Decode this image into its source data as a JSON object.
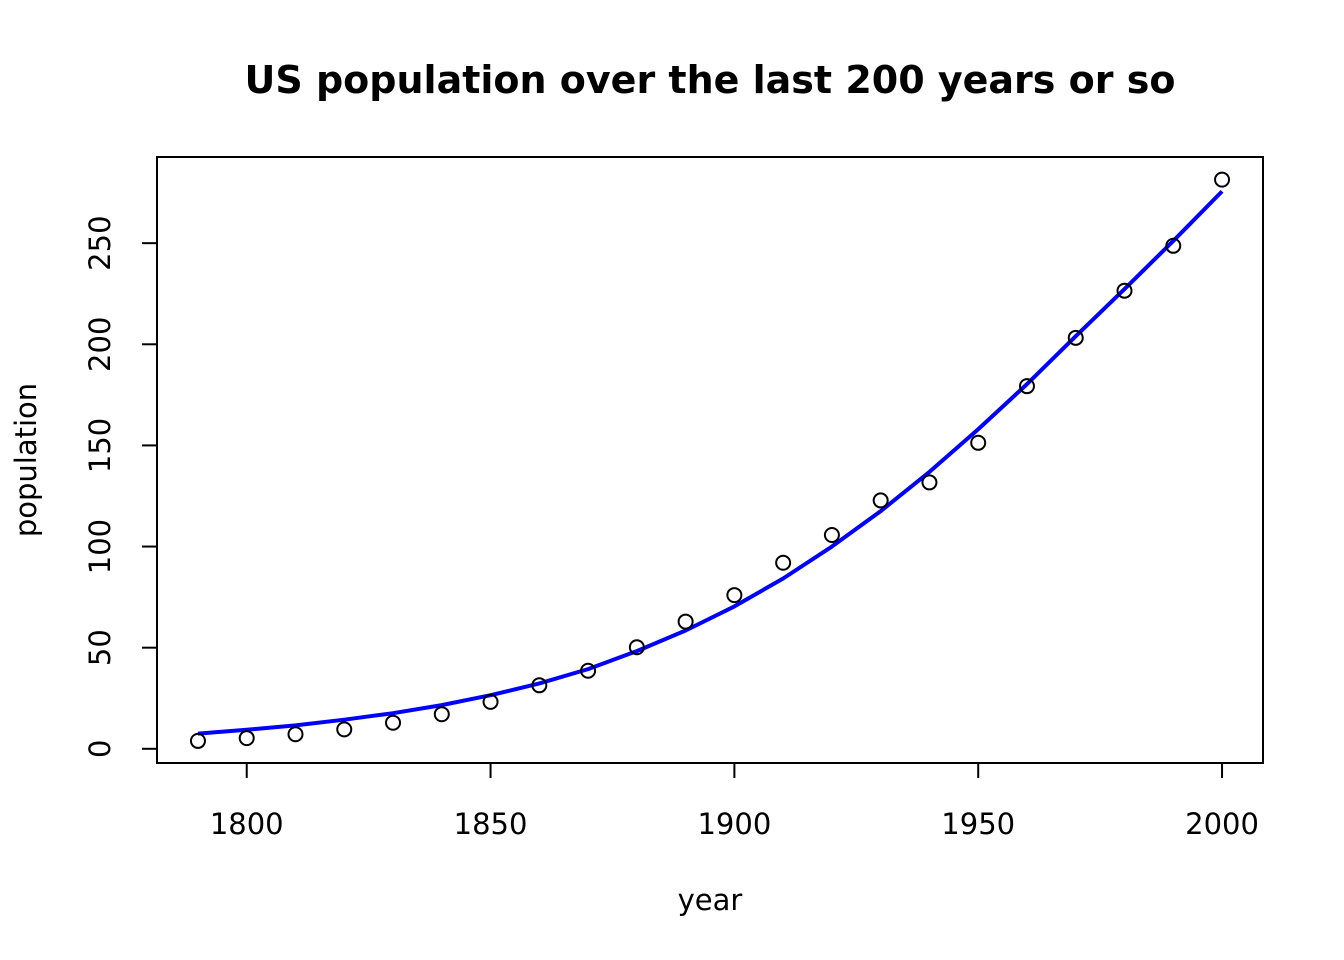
{
  "chart_data": {
    "type": "scatter",
    "title": "US population over the last 200 years or so",
    "xlabel": "year",
    "ylabel": "population",
    "xlim": [
      1781.6,
      2008.4
    ],
    "ylim": [
      -7.02,
      292.6
    ],
    "xticks": [
      1800,
      1850,
      1900,
      1950,
      2000
    ],
    "yticks": [
      0,
      50,
      100,
      150,
      200,
      250
    ],
    "grid": false,
    "legend": "none",
    "series": [
      {
        "type": "points",
        "marker": "open-circle",
        "color": "#000000",
        "x": [
          1790,
          1800,
          1810,
          1820,
          1830,
          1840,
          1850,
          1860,
          1870,
          1880,
          1890,
          1900,
          1910,
          1920,
          1930,
          1940,
          1950,
          1960,
          1970,
          1980,
          1990,
          2000
        ],
        "y": [
          3.9,
          5.3,
          7.2,
          9.6,
          12.9,
          17.1,
          23.2,
          31.4,
          38.6,
          50.2,
          62.9,
          76.0,
          92.0,
          105.7,
          122.8,
          131.7,
          151.3,
          179.3,
          203.2,
          226.5,
          248.7,
          281.4
        ]
      },
      {
        "type": "line",
        "color": "#0000ff",
        "x": [
          1790,
          1800,
          1810,
          1820,
          1830,
          1840,
          1850,
          1860,
          1870,
          1880,
          1890,
          1900,
          1910,
          1920,
          1930,
          1940,
          1950,
          1960,
          1970,
          1980,
          1990,
          2000
        ],
        "y": [
          7.5,
          9.4,
          11.6,
          14.4,
          17.6,
          21.6,
          26.5,
          32.3,
          39.4,
          48.3,
          58.5,
          70.4,
          84.2,
          100.0,
          117.5,
          136.9,
          158.0,
          180.3,
          204.0,
          227.3,
          251.1,
          275.6
        ]
      }
    ]
  }
}
